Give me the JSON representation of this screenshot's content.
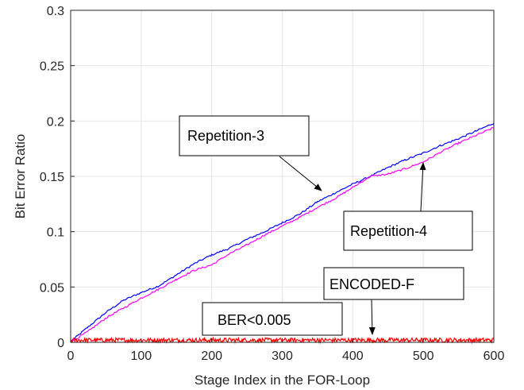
{
  "chart_data": {
    "type": "line",
    "xlabel": "Stage Index in the FOR-Loop",
    "ylabel": "Bit Error Ratio",
    "xlim": [
      0,
      600
    ],
    "ylim": [
      0,
      0.3
    ],
    "xticks": [
      0,
      100,
      200,
      300,
      400,
      500,
      600
    ],
    "yticks": [
      0,
      0.05,
      0.1,
      0.15,
      0.2,
      0.25,
      0.3
    ],
    "xtick_labels": [
      "0",
      "100",
      "200",
      "300",
      "400",
      "500",
      "600"
    ],
    "ytick_labels": [
      "0",
      "0.05",
      "0.1",
      "0.15",
      "0.2",
      "0.25",
      "0.3"
    ],
    "grid": true,
    "series": [
      {
        "name": "Repetition-3",
        "color": "#0000ff",
        "x": [
          0,
          10,
          25,
          50,
          75,
          100,
          125,
          150,
          175,
          200,
          225,
          250,
          275,
          300,
          325,
          350,
          375,
          400,
          425,
          450,
          475,
          500,
          525,
          550,
          575,
          600
        ],
        "y": [
          0,
          0.006,
          0.014,
          0.027,
          0.038,
          0.045,
          0.051,
          0.061,
          0.071,
          0.079,
          0.085,
          0.093,
          0.1,
          0.108,
          0.116,
          0.127,
          0.135,
          0.143,
          0.15,
          0.158,
          0.165,
          0.171,
          0.178,
          0.184,
          0.191,
          0.198
        ]
      },
      {
        "name": "Repetition-4",
        "color": "#ff00ff",
        "x": [
          0,
          10,
          25,
          50,
          75,
          100,
          125,
          150,
          175,
          200,
          225,
          250,
          275,
          300,
          325,
          350,
          375,
          400,
          425,
          450,
          475,
          500,
          525,
          550,
          575,
          600
        ],
        "y": [
          0,
          0.004,
          0.01,
          0.022,
          0.031,
          0.04,
          0.048,
          0.057,
          0.065,
          0.07,
          0.08,
          0.088,
          0.097,
          0.105,
          0.113,
          0.122,
          0.13,
          0.14,
          0.15,
          0.152,
          0.157,
          0.163,
          0.172,
          0.18,
          0.187,
          0.194
        ]
      },
      {
        "name": "ENCODED-F",
        "color": "#ff0000",
        "x": [
          0,
          600
        ],
        "y": [
          0.001,
          0.001
        ],
        "noise": [
          0,
          0.004
        ]
      }
    ],
    "annotations": [
      {
        "text": "Repetition-3",
        "arrow_to": [
          360,
          0.13
        ]
      },
      {
        "text": "Repetition-4",
        "arrow_to": [
          500,
          0.165
        ]
      },
      {
        "text": "ENCODED-F",
        "arrow_to": [
          430,
          0.002
        ]
      },
      {
        "text": "BER<0.005"
      }
    ]
  }
}
